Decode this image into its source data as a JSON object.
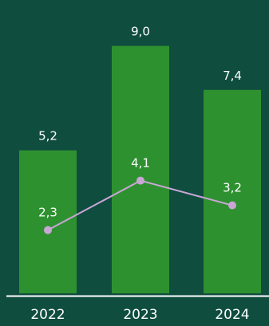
{
  "chart_data": {
    "type": "bar",
    "categories": [
      "2022",
      "2023",
      "2024"
    ],
    "series": [
      {
        "type": "bar",
        "values": [
          5.2,
          9.0,
          7.4
        ],
        "labels": [
          "5,2",
          "9,0",
          "7,4"
        ],
        "color": "#2e9130"
      },
      {
        "type": "line",
        "values": [
          2.3,
          4.1,
          3.2
        ],
        "labels": [
          "2,3",
          "4,1",
          "3,2"
        ],
        "color": "#c9a6d6"
      }
    ],
    "ylim": [
      0,
      9.8
    ],
    "grid": false,
    "legend": "none",
    "colors": {
      "background": "#0f4d3f",
      "axis": "#ffffff",
      "text": "#ffffff"
    }
  }
}
